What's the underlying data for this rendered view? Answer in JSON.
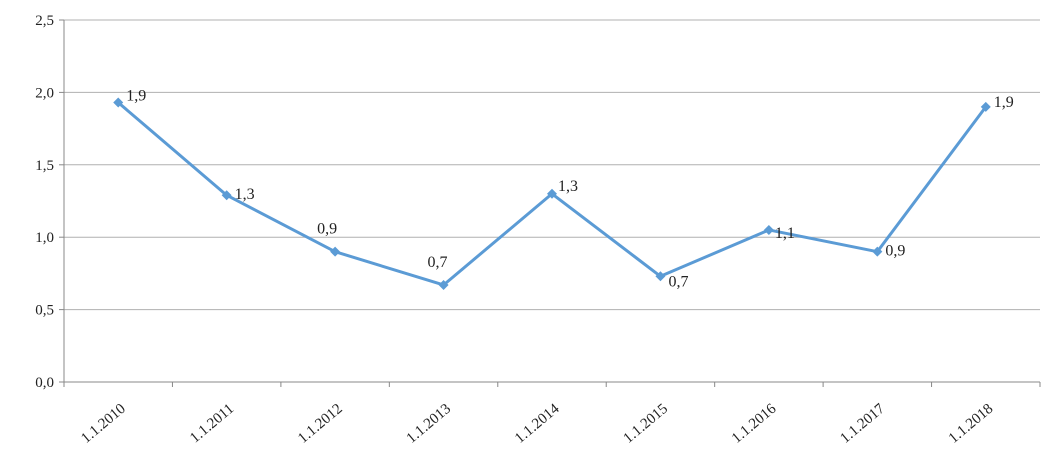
{
  "chart_data": {
    "type": "line",
    "categories": [
      "1.1.2010",
      "1.1.2011",
      "1.1.2012",
      "1.1.2013",
      "1.1.2014",
      "1.1.2015",
      "1.1.2016",
      "1.1.2017",
      "1.1.2018"
    ],
    "series": [
      {
        "values": [
          1.93,
          1.29,
          0.9,
          0.67,
          1.3,
          0.73,
          1.05,
          0.9,
          1.9
        ]
      }
    ],
    "data_labels": [
      "1,9",
      "1,3",
      "0,9",
      "0,7",
      "1,3",
      "0,7",
      "1,1",
      "0,9",
      "1,9"
    ],
    "y_ticks": [
      "0,0",
      "0,5",
      "1,0",
      "1,5",
      "2,0",
      "2,5"
    ],
    "ylim": [
      0,
      2.5
    ],
    "grid": true,
    "line_color": "#5b9bd5",
    "grid_color": "#b0b0b0"
  }
}
